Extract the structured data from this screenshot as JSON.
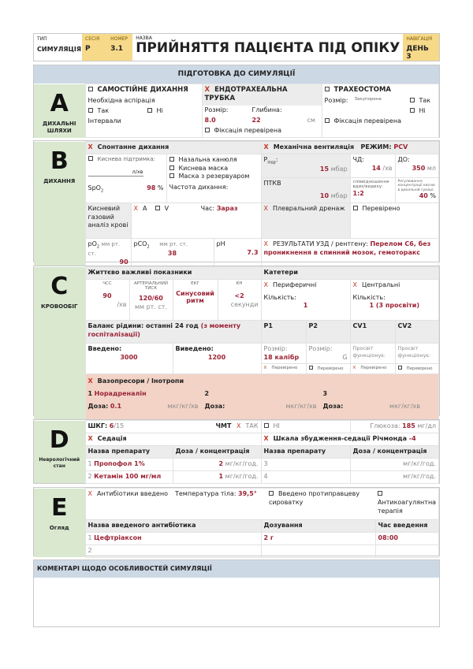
{
  "header": {
    "type_label": "ТИП",
    "type_value": "СИМУЛЯЦІЯ",
    "session_label": "СЕСІЯ",
    "session_value": "P",
    "number_label": "НОМЕР",
    "number_value": "3.1",
    "name_label": "НАЗВА",
    "title": "ПРИЙНЯТТЯ ПАЦІЄНТА ПІД ОПІКУ",
    "nav_label": "НАВІГАЦІЯ",
    "nav_value": "ДЕНЬ 3"
  },
  "prep_title": "ПІДГОТОВКА ДО СИМУЛЯЦІЇ",
  "a": {
    "letter": "A",
    "name": "ДИХАЛЬНІ ШЛЯХИ",
    "spont": "САМОСТІЙНЕ ДИХАННЯ",
    "aspiration": "Необхідна аспірація",
    "yes": "Так",
    "no": "Ні",
    "intervals": "Інтервали",
    "ett": "ЕНДОТРАХЕАЛЬНА ТРУБКА",
    "size": "Розмір:",
    "depth": "Глибина:",
    "size_val": "8.0",
    "depth_val": "22",
    "cm": "см",
    "fix": "Фіксація перевірена",
    "trach": "ТРАХЕОСТОМА",
    "trach_size": "Розмір:",
    "blocked": "Закупорена",
    "yes2": "Так",
    "no2": "Ні",
    "fix2": "Фіксація перевірена"
  },
  "b": {
    "letter": "B",
    "name": "ДИХАННЯ",
    "spont": "Спонтанне дихання",
    "o2": "Киснева підтримка:",
    "lmin": "л/хв",
    "nasal": "Назальна канюля",
    "mask": "Киснева маска",
    "reservoir": "Маска з резервуаром",
    "spo2": "SpO",
    "spo2_sub": "2",
    "spo2_val": "98",
    "pct": "%",
    "rr": "Частота дихання:",
    "mv": "Механічна вентиляція",
    "mode_label": "РЕЖИМ:",
    "mode": "PCV",
    "pinsp": "P",
    "pinsp_sub": "insp",
    "pinsp_val": "15",
    "mbar": "мбар",
    "chd": "ЧД:",
    "chd_val": "14",
    "per_min": "/хв",
    "do": "ДО:",
    "do_val": "350",
    "ml": "мл",
    "ptkv": "ПТКВ",
    "ptkv_val": "10",
    "mbar2": "мбар",
    "ie": "співвідношення вдих/видиху:",
    "ie_val": "1:2",
    "fio2": "Регулювання концентрації кисню в дихальній суміші:",
    "fio2_val": "40",
    "pct2": "%",
    "abg": "Кисневий газовий аналіз крові",
    "a_opt": "A",
    "v_opt": "V",
    "time_label": "Час:",
    "time_val": "Зараз",
    "pleural": "Плевральний дренаж",
    "checked": "Перевірено",
    "po2": "pO",
    "po2_sub": "2",
    "mmhg": "мм рт. ст.",
    "po2_val": "90",
    "pco2": "pCO",
    "pco2_sub": "2",
    "pco2_val": "38",
    "ph": "pH",
    "ph_val": "7.3",
    "us_label": "РЕЗУЛЬТАТИ УЗД / рентгену:",
    "us_val": "Перелом С6, без проникнення в спинний мозок, гемоторакс"
  },
  "c": {
    "letter": "C",
    "name": "КРОВООБІГ",
    "vitals": "Життєво важливі показники",
    "hr": "ЧСС",
    "hr_val": "90",
    "per_min": "/хв",
    "bp": "АРТЕРІАЛЬНИЙ ТИСК",
    "bp_val": "120/60",
    "mmhg": "мм рт. ст.",
    "ecg": "ЕКГ",
    "ecg_val": "Синусовий ритм",
    "cr": "КН",
    "cr_val": "<2",
    "sec": "секунди",
    "cath": "Катетери",
    "periph": "Периферичні",
    "central": "Центральні",
    "count": "Кількість:",
    "periph_val": "1",
    "central_val": "1 (3 просвіти)",
    "balance": "Баланс рідини: останні 24 год",
    "balance_red": "(з моменту госпіталізації)",
    "p1": "P1",
    "p2": "P2",
    "cv1": "CV1",
    "cv2": "CV2",
    "in": "Введено:",
    "in_val": "3000",
    "out": "Виведено:",
    "out_val": "1200",
    "size": "Розмір:",
    "p1_val": "18 калібр",
    "g": "G",
    "lumen": "Просвіт функціонує:",
    "checked": "Перевірено",
    "vaso": "Вазопресори / Інотропи",
    "v1n": "1",
    "v1": "Норадреналін",
    "v2n": "2",
    "v3n": "3",
    "dose": "Доза:",
    "dose1": "0.1",
    "unit": "мкг/кг/хв"
  },
  "d": {
    "letter": "D",
    "name": "Неврологічний стан",
    "gcs": "ШКГ:",
    "gcs_val": "6",
    "gcs_max": "/15",
    "tbi": "ЧМТ",
    "yes": "ТАК",
    "no": "НІ",
    "glucose": "Глюкоза:",
    "glucose_val": "185",
    "glucose_unit": "мг/дл",
    "sed": "Седація",
    "rass": "Шкала збудження-седації Річмонда",
    "rass_val": "-4",
    "col_name": "Назва препарату",
    "col_dose": "Доза / концентрація",
    "unit": "мг/кг/год.",
    "rows": [
      {
        "n": "1",
        "drug": "Пропофол 1%",
        "dose": "2"
      },
      {
        "n": "2",
        "drug": "Кетамін 100 мг/мл",
        "dose": "1"
      },
      {
        "n": "3",
        "drug": "",
        "dose": ""
      },
      {
        "n": "4",
        "drug": "",
        "dose": ""
      }
    ]
  },
  "e": {
    "letter": "E",
    "name": "Огляд",
    "abx": "Антибіотики введено",
    "temp": "Температура тіла:",
    "temp_val": "39,5°",
    "tetanus": "Введено протиправцеву сироватку",
    "anticoag": "Антикоагулянтна терапія",
    "col_name": "Назва введеного антибіотика",
    "col_dose": "Дозування",
    "col_time": "Час введення",
    "rows": [
      {
        "n": "1",
        "name": "Цефтріаксон",
        "dose": "2 г",
        "time": "08:00"
      },
      {
        "n": "2",
        "name": "",
        "dose": "",
        "time": ""
      }
    ]
  },
  "comments_title": "КОМЕНТАРІ ЩОДО ОСОБЛИВОСТЕЙ СИМУЛЯЦІЇ"
}
